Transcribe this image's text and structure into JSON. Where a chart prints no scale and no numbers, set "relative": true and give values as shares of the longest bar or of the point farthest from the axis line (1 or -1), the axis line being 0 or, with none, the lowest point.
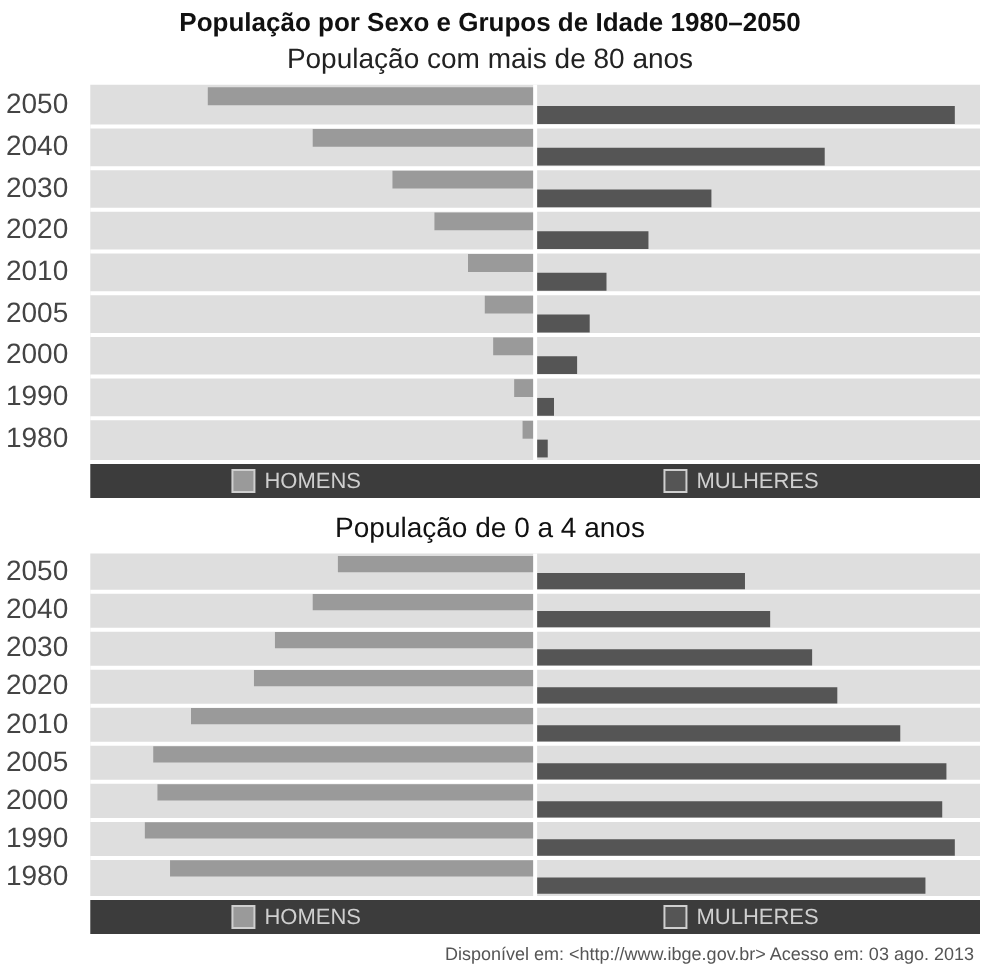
{
  "chart_data": [
    {
      "type": "bar",
      "title": "População por Sexo e Grupos de Idade 1980–2050",
      "subtitle": "População com mais de 80 anos",
      "orientation": "horizontal",
      "relative": true,
      "legend": "bottom",
      "categories": [
        "2050",
        "2040",
        "2030",
        "2020",
        "2010",
        "2005",
        "2000",
        "1990",
        "1980"
      ],
      "series": [
        {
          "name": "HOMENS",
          "color": "#9a9a9a",
          "values": [
            -0.78,
            -0.53,
            -0.34,
            -0.24,
            -0.16,
            -0.12,
            -0.1,
            -0.05,
            -0.03
          ]
        },
        {
          "name": "MULHERES",
          "color": "#555555",
          "values": [
            1,
            0.69,
            0.42,
            0.27,
            0.17,
            0.13,
            0.1,
            0.045,
            0.03
          ]
        }
      ]
    },
    {
      "type": "bar",
      "title": "População de 0 a 4 anos",
      "orientation": "horizontal",
      "relative": true,
      "legend": "bottom",
      "annotations": [
        "Disponível em: <http://www.ibge.gov.br> Acesso em: 03 ago. 2013"
      ],
      "categories": [
        "2050",
        "2040",
        "2030",
        "2020",
        "2010",
        "2005",
        "2000",
        "1990",
        "1980"
      ],
      "series": [
        {
          "name": "HOMENS",
          "color": "#9a9a9a",
          "values": [
            -0.47,
            -0.53,
            -0.62,
            -0.67,
            -0.82,
            -0.91,
            -0.9,
            -0.93,
            -0.87
          ]
        },
        {
          "name": "MULHERES",
          "color": "#555555",
          "values": [
            0.5,
            0.56,
            0.66,
            0.72,
            0.87,
            0.98,
            0.97,
            1,
            0.93
          ]
        }
      ]
    }
  ]
}
